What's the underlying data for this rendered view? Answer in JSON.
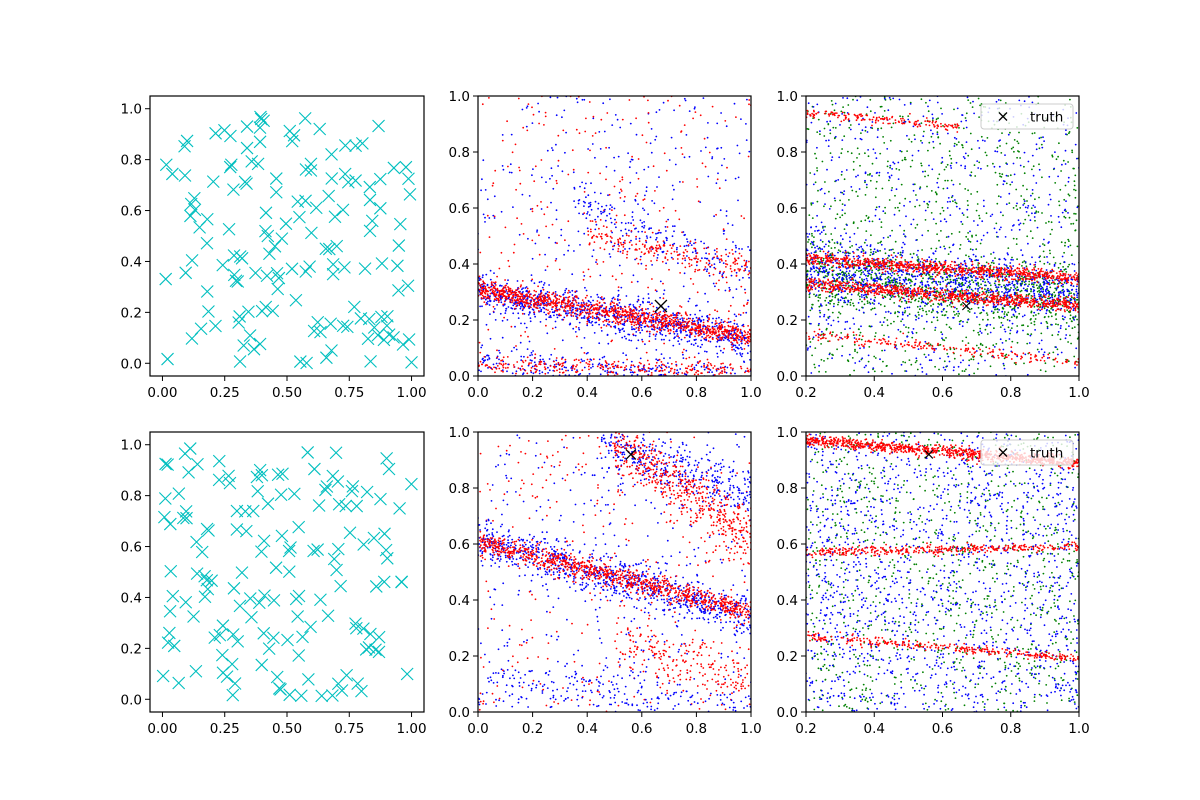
{
  "chart_data": [
    {
      "panel": "top-left",
      "type": "scatter",
      "title": "",
      "xlabel": "",
      "ylabel": "",
      "xlim": [
        -0.05,
        1.05
      ],
      "ylim": [
        -0.05,
        1.05
      ],
      "xticks": [
        "0.00",
        "0.25",
        "0.50",
        "0.75",
        "1.00"
      ],
      "yticks": [
        "0.0",
        "0.2",
        "0.4",
        "0.6",
        "0.8",
        "1.0"
      ],
      "series": [
        {
          "marker": "x",
          "color": "#00bfbf",
          "count": 150,
          "distribution": "uniform over [0,1] x [0,1]"
        }
      ]
    },
    {
      "panel": "top-middle",
      "type": "scatter",
      "title": "",
      "xlabel": "",
      "ylabel": "",
      "xlim": [
        0,
        1
      ],
      "ylim": [
        0,
        1
      ],
      "xticks": [
        "0.0",
        "0.2",
        "0.4",
        "0.6",
        "0.8",
        "1.0"
      ],
      "yticks": [
        "0.0",
        "0.2",
        "0.4",
        "0.6",
        "0.8",
        "1.0"
      ],
      "series": [
        {
          "color": "#0000ff",
          "marker": "dot",
          "bands": [
            [
              0.3,
              0.13
            ],
            [
              0.05,
              0.0
            ],
            [
              0.62,
              0.36
            ]
          ]
        },
        {
          "color": "#ff0000",
          "marker": "dot",
          "bands": [
            [
              0.31,
              0.14
            ],
            [
              0.04,
              0.02
            ],
            [
              0.48,
              0.38
            ]
          ]
        }
      ],
      "truth_point": [
        0.67,
        0.25
      ]
    },
    {
      "panel": "top-right",
      "type": "scatter",
      "title": "",
      "xlabel": "",
      "ylabel": "",
      "xlim": [
        0.2,
        1.0
      ],
      "ylim": [
        0,
        1
      ],
      "xticks": [
        "0.2",
        "0.4",
        "0.6",
        "0.8",
        "1.0"
      ],
      "yticks": [
        "0.0",
        "0.2",
        "0.4",
        "0.6",
        "0.8",
        "1.0"
      ],
      "legend": {
        "position": "top-right",
        "entries": [
          {
            "label": "truth",
            "marker": "x",
            "color": "#000000"
          }
        ]
      },
      "series": [
        {
          "color": "#008000",
          "marker": "dot"
        },
        {
          "color": "#0000ff",
          "marker": "dot"
        },
        {
          "color": "#ff0000",
          "marker": "dot",
          "bands": [
            [
              0.42,
              0.35
            ],
            [
              0.33,
              0.25
            ],
            [
              0.15,
              0.05
            ],
            [
              0.94,
              0.89
            ]
          ]
        }
      ],
      "truth_point": [
        0.67,
        0.25
      ]
    },
    {
      "panel": "bottom-left",
      "type": "scatter",
      "title": "",
      "xlabel": "",
      "ylabel": "",
      "xlim": [
        -0.05,
        1.05
      ],
      "ylim": [
        -0.05,
        1.05
      ],
      "xticks": [
        "0.00",
        "0.25",
        "0.50",
        "0.75",
        "1.00"
      ],
      "yticks": [
        "0.0",
        "0.2",
        "0.4",
        "0.6",
        "0.8",
        "1.0"
      ],
      "series": [
        {
          "marker": "x",
          "color": "#00bfbf",
          "count": 150,
          "distribution": "uniform over [0,1] x [0,1]"
        }
      ]
    },
    {
      "panel": "bottom-middle",
      "type": "scatter",
      "title": "",
      "xlabel": "",
      "ylabel": "",
      "xlim": [
        0,
        1
      ],
      "ylim": [
        0,
        1
      ],
      "xticks": [
        "0.0",
        "0.2",
        "0.4",
        "0.6",
        "0.8",
        "1.0"
      ],
      "yticks": [
        "0.0",
        "0.2",
        "0.4",
        "0.6",
        "0.8",
        "1.0"
      ],
      "series": [
        {
          "color": "#0000ff",
          "marker": "dot",
          "bands": [
            [
              0.62,
              0.34
            ],
            [
              0.95,
              0.78
            ],
            [
              0.12,
              0.02
            ]
          ]
        },
        {
          "color": "#ff0000",
          "marker": "dot",
          "bands": [
            [
              0.61,
              0.36
            ],
            [
              0.96,
              0.62
            ],
            [
              0.25,
              0.12
            ]
          ]
        }
      ],
      "truth_point": [
        0.56,
        0.92
      ]
    },
    {
      "panel": "bottom-right",
      "type": "scatter",
      "title": "",
      "xlabel": "",
      "ylabel": "",
      "xlim": [
        0.2,
        1.0
      ],
      "ylim": [
        0,
        1
      ],
      "xticks": [
        "0.2",
        "0.4",
        "0.6",
        "0.8",
        "1.0"
      ],
      "yticks": [
        "0.0",
        "0.2",
        "0.4",
        "0.6",
        "0.8",
        "1.0"
      ],
      "legend": {
        "position": "top-right",
        "entries": [
          {
            "label": "truth",
            "marker": "x",
            "color": "#000000"
          }
        ]
      },
      "series": [
        {
          "color": "#008000",
          "marker": "dot"
        },
        {
          "color": "#0000ff",
          "marker": "dot"
        },
        {
          "color": "#ff0000",
          "marker": "dot",
          "bands": [
            [
              0.97,
              0.89
            ],
            [
              0.57,
              0.59
            ],
            [
              0.27,
              0.19
            ]
          ]
        }
      ],
      "truth_point": [
        0.56,
        0.92
      ]
    }
  ]
}
